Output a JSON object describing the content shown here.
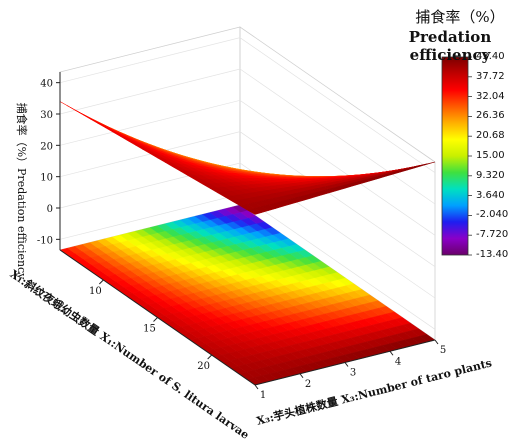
{
  "chart_data": {
    "type": "surface3d",
    "legend": {
      "title_cn": "捕食率（%）",
      "title_en": "Predation efficiency",
      "ticks": [
        "43.40",
        "37.72",
        "32.04",
        "26.36",
        "20.68",
        "15.00",
        "9.320",
        "3.640",
        "-2.040",
        "-7.720",
        "-13.40"
      ],
      "min": -13.4,
      "max": 43.4,
      "colors": [
        "#6a006a",
        "#8a00c8",
        "#1e1ef0",
        "#00a0ff",
        "#00e0c0",
        "#3fe03f",
        "#c8f000",
        "#ffff00",
        "#ffb000",
        "#ff5a00",
        "#ff0000",
        "#c00000",
        "#7a0000"
      ]
    },
    "z_axis": {
      "label": "捕食率（%）Predation efficiency",
      "ticks": [
        "-10",
        "0",
        "10",
        "20",
        "30",
        "40"
      ],
      "range": [
        -13.4,
        43.4
      ]
    },
    "x1_axis": {
      "label": "X₁:斜纹夜蛾幼虫数量 X₁:Number of S. litura larvae",
      "ticks": [
        "10",
        "15",
        "20"
      ],
      "range": [
        6,
        24
      ]
    },
    "x3_axis": {
      "label": "X₃:芋头植株数量 X₃:Number of taro plants",
      "ticks": [
        "1",
        "2",
        "3",
        "4",
        "5"
      ],
      "range": [
        1,
        5
      ]
    },
    "corners": [
      {
        "x1": 6,
        "x3": 1,
        "z": 34
      },
      {
        "x1": 24,
        "x3": 1,
        "z": 41
      },
      {
        "x1": 6,
        "x3": 5,
        "z": -13.4
      },
      {
        "x1": 24,
        "x3": 5,
        "z": 43.4
      }
    ]
  }
}
